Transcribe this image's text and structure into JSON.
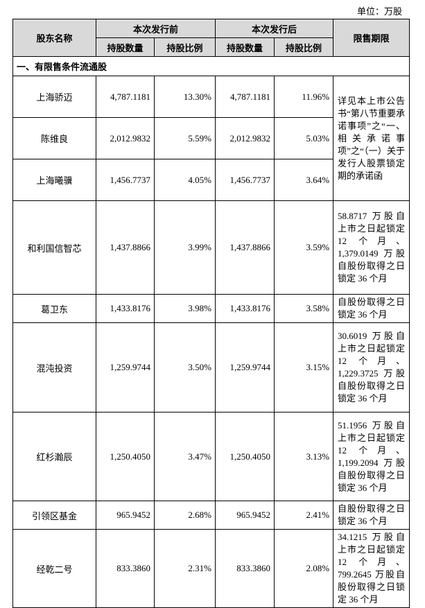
{
  "unit": "单位：万股",
  "header": {
    "name": "股东名称",
    "before": "本次发行前",
    "after": "本次发行后",
    "lockup": "限售期限",
    "sub": [
      "持股数量",
      "持股比例",
      "持股数量",
      "持股比例"
    ]
  },
  "section": "一、有限售条件流通股",
  "groups": [
    {
      "lockup": "详见本上市公告书“第八节重要承诺事项”之“一、相关承诺事项”之“（一）关于发行人股票锁定期的承诺函",
      "holders": [
        [
          "上海骄迈",
          "4,787.1181",
          "13.30%",
          "4,787.1181",
          "11.96%"
        ],
        [
          "陈维良",
          "2,012.9832",
          "5.59%",
          "2,012.9832",
          "5.03%"
        ],
        [
          "上海曦骥",
          "1,456.7737",
          "4.05%",
          "1,456.7737",
          "3.64%"
        ]
      ]
    },
    {
      "lockup": "58.8717 万股自上市之日起锁定 12 个月、1,379.0149 万股自股份取得之日锁定 36 个月",
      "holders": [
        [
          "和利国信智芯",
          "1,437.8866",
          "3.99%",
          "1,437.8866",
          "3.59%"
        ]
      ]
    },
    {
      "lockup": "自股份取得之日锁定 36 个月",
      "holders": [
        [
          "葛卫东",
          "1,433.8176",
          "3.98%",
          "1,433.8176",
          "3.58%"
        ]
      ]
    },
    {
      "lockup": "30.6019 万股自上市之日起锁定 12 个月、1,229.3725 万股自股份取得之日锁定 36 个月",
      "holders": [
        [
          "混沌投资",
          "1,259.9744",
          "3.50%",
          "1,259.9744",
          "3.15%"
        ]
      ]
    },
    {
      "lockup": "51.1956 万股自上市之日起锁定 12 个月、1,199.2094 万股自股份取得之日锁定 36 个月",
      "holders": [
        [
          "红杉瀚辰",
          "1,250.4050",
          "3.47%",
          "1,250.4050",
          "3.13%"
        ]
      ]
    },
    {
      "lockup": "自股份取得之日锁定 36 个月",
      "holders": [
        [
          "引领区基金",
          "965.9452",
          "2.68%",
          "965.9452",
          "2.41%"
        ]
      ]
    },
    {
      "lockup": "34.1215 万股自上市之日起锁定 12 个月、799.2645 万股自股份取得之日锁定 36 个月",
      "holders": [
        [
          "经乾二号",
          "833.3860",
          "2.31%",
          "833.3860",
          "2.08%"
        ]
      ]
    }
  ]
}
